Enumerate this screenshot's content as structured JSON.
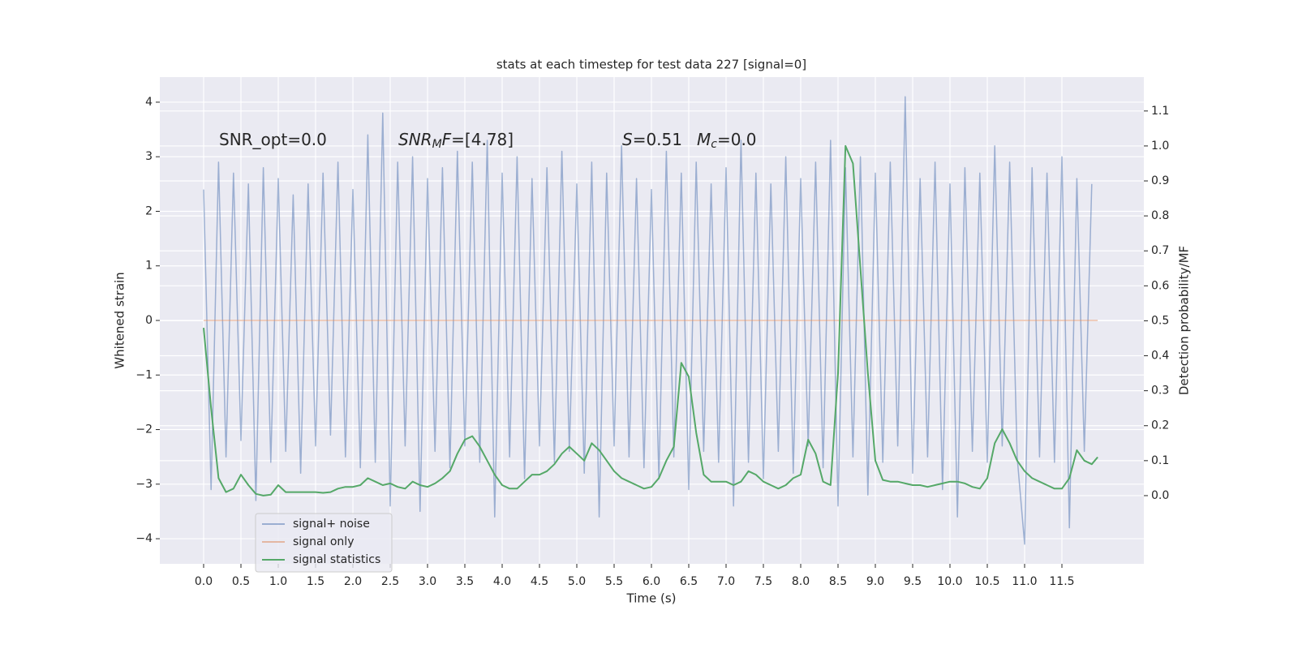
{
  "chart_data": {
    "type": "line",
    "title": "stats at each timestep for test data 227 [signal=0]",
    "xlabel": "Time (s)",
    "ylabel": "Whitened strain",
    "y2label": "Detection probability/MF",
    "annotations": [
      [
        {
          "t": "SNR_opt=0.0",
          "style": "normal"
        }
      ],
      [
        {
          "t": "SNR",
          "style": "italic"
        },
        {
          "t": "M",
          "style": "sub"
        },
        {
          "t": "F",
          "style": "italic"
        },
        {
          "t": "=[4.78]",
          "style": "normal"
        }
      ],
      [
        {
          "t": "S",
          "style": "italic"
        },
        {
          "t": "=0.51",
          "style": "normal"
        }
      ],
      [
        {
          "t": "M",
          "style": "italic"
        },
        {
          "t": "c",
          "style": "sub"
        },
        {
          "t": "=0.0",
          "style": "normal"
        }
      ]
    ],
    "xlim": [
      -0.587,
      12.598
    ],
    "xticks": [
      {
        "value": 0,
        "label": "0.0"
      },
      0.5,
      {
        "value": 1,
        "label": "1.0"
      },
      1.5,
      {
        "value": 2,
        "label": "2.0"
      },
      2.5,
      {
        "value": 3,
        "label": "3.0"
      },
      3.5,
      {
        "value": 4,
        "label": "4.0"
      },
      4.5,
      {
        "value": 5,
        "label": "5.0"
      },
      5.5,
      {
        "value": 6,
        "label": "6.0"
      },
      6.5,
      {
        "value": 7,
        "label": "7.0"
      },
      7.5,
      {
        "value": 8,
        "label": "8.0"
      },
      8.5,
      {
        "value": 9,
        "label": "9.0"
      },
      9.5,
      {
        "value": 10,
        "label": "10.0"
      },
      10.5,
      {
        "value": 11,
        "label": "11.0"
      },
      11.5
    ],
    "ylim": [
      -4.46,
      4.46
    ],
    "yticks": [
      {
        "value": -4,
        "label": "−4"
      },
      {
        "value": -3,
        "label": "−3"
      },
      {
        "value": -2,
        "label": "−2"
      },
      {
        "value": -1,
        "label": "−1"
      },
      0,
      1,
      2,
      3,
      4
    ],
    "y2lim": [
      -0.195,
      1.197
    ],
    "y2ticks": [
      {
        "value": 0,
        "label": "0.0"
      },
      0.1,
      0.2,
      0.3,
      0.4,
      0.5,
      0.6,
      0.7,
      0.8,
      0.9,
      {
        "value": 1,
        "label": "1.0"
      },
      1.1
    ],
    "grid": true,
    "legend": "lower left",
    "series": [
      {
        "name": "signal+ noise",
        "color": "#4c72b0",
        "opacity": 0.5,
        "x": [
          0.0,
          0.1,
          0.2,
          0.3,
          0.4,
          0.5,
          0.6,
          0.7,
          0.8,
          0.9,
          1.0,
          1.1,
          1.2,
          1.3,
          1.4,
          1.5,
          1.6,
          1.7,
          1.8,
          1.9,
          2.0,
          2.1,
          2.2,
          2.3,
          2.4,
          2.5,
          2.6,
          2.7,
          2.8,
          2.9,
          3.0,
          3.1,
          3.2,
          3.3,
          3.4,
          3.5,
          3.6,
          3.7,
          3.8,
          3.9,
          4.0,
          4.1,
          4.2,
          4.3,
          4.4,
          4.5,
          4.6,
          4.7,
          4.8,
          4.9,
          5.0,
          5.1,
          5.2,
          5.3,
          5.4,
          5.5,
          5.6,
          5.7,
          5.8,
          5.9,
          6.0,
          6.1,
          6.2,
          6.3,
          6.4,
          6.5,
          6.6,
          6.7,
          6.8,
          6.9,
          7.0,
          7.1,
          7.2,
          7.3,
          7.4,
          7.5,
          7.6,
          7.7,
          7.8,
          7.9,
          8.0,
          8.1,
          8.2,
          8.3,
          8.4,
          8.5,
          8.6,
          8.7,
          8.8,
          8.9,
          9.0,
          9.1,
          9.2,
          9.3,
          9.4,
          9.5,
          9.6,
          9.7,
          9.8,
          9.9,
          10.0,
          10.1,
          10.2,
          10.3,
          10.4,
          10.5,
          10.6,
          10.7,
          10.8,
          10.9,
          11.0,
          11.1,
          11.2,
          11.3,
          11.4,
          11.5,
          11.6,
          11.7,
          11.8,
          11.9
        ],
        "values": [
          2.4,
          -3.1,
          2.9,
          -2.5,
          2.7,
          -2.2,
          2.5,
          -3.3,
          2.8,
          -2.6,
          2.6,
          -2.4,
          2.3,
          -2.8,
          2.5,
          -2.3,
          2.7,
          -2.1,
          2.9,
          -2.5,
          2.4,
          -2.7,
          3.4,
          -2.6,
          3.8,
          -3.4,
          2.9,
          -2.3,
          3.0,
          -3.5,
          2.6,
          -2.4,
          2.8,
          -2.7,
          3.1,
          -2.3,
          2.9,
          -2.6,
          3.3,
          -3.6,
          2.7,
          -2.5,
          3.0,
          -2.9,
          2.6,
          -2.3,
          2.8,
          -2.6,
          3.1,
          -2.4,
          2.5,
          -2.8,
          2.9,
          -3.6,
          2.7,
          -2.3,
          3.2,
          -2.5,
          2.6,
          -2.7,
          2.4,
          -2.9,
          3.1,
          -2.5,
          2.7,
          -3.1,
          2.9,
          -2.4,
          2.5,
          -2.6,
          2.8,
          -3.4,
          3.3,
          -2.6,
          2.7,
          -2.9,
          2.5,
          -2.4,
          3.0,
          -2.8,
          2.6,
          -2.3,
          2.9,
          -2.7,
          3.3,
          -3.4,
          2.8,
          -2.5,
          3.0,
          -3.2,
          2.7,
          -2.6,
          2.9,
          -2.3,
          4.1,
          -2.8,
          2.6,
          -2.5,
          2.9,
          -3.1,
          2.5,
          -3.6,
          2.8,
          -2.4,
          2.7,
          -2.6,
          3.2,
          -2.3,
          2.9,
          -2.5,
          -4.1,
          2.8,
          -2.5,
          2.7,
          -2.6,
          3.0,
          -3.8,
          2.6,
          -2.4,
          2.5
        ]
      },
      {
        "name": "signal only",
        "color": "#dd8452",
        "opacity": 0.5,
        "x": [
          0.0,
          11.98
        ],
        "values": [
          0,
          0
        ]
      },
      {
        "name": "signal statistics",
        "color": "#55a868",
        "opacity": 1,
        "axis": "y2",
        "x": [
          0.0,
          0.1,
          0.2,
          0.3,
          0.4,
          0.5,
          0.6,
          0.7,
          0.8,
          0.9,
          1.0,
          1.1,
          1.2,
          1.3,
          1.4,
          1.5,
          1.6,
          1.7,
          1.8,
          1.9,
          2.0,
          2.1,
          2.2,
          2.3,
          2.4,
          2.5,
          2.6,
          2.7,
          2.8,
          2.9,
          3.0,
          3.1,
          3.2,
          3.3,
          3.4,
          3.5,
          3.6,
          3.7,
          3.8,
          3.9,
          4.0,
          4.1,
          4.2,
          4.3,
          4.4,
          4.5,
          4.6,
          4.7,
          4.8,
          4.9,
          5.0,
          5.1,
          5.2,
          5.3,
          5.4,
          5.5,
          5.6,
          5.7,
          5.8,
          5.9,
          6.0,
          6.1,
          6.2,
          6.3,
          6.4,
          6.5,
          6.6,
          6.7,
          6.8,
          6.9,
          7.0,
          7.1,
          7.2,
          7.3,
          7.4,
          7.5,
          7.6,
          7.7,
          7.8,
          7.9,
          8.0,
          8.1,
          8.2,
          8.3,
          8.4,
          8.5,
          8.6,
          8.7,
          8.8,
          8.9,
          9.0,
          9.1,
          9.2,
          9.3,
          9.4,
          9.5,
          9.6,
          9.7,
          9.8,
          9.9,
          10.0,
          10.1,
          10.2,
          10.3,
          10.4,
          10.5,
          10.6,
          10.7,
          10.8,
          10.9,
          11.0,
          11.1,
          11.2,
          11.3,
          11.4,
          11.5,
          11.6,
          11.7,
          11.8,
          11.9,
          11.98
        ],
        "values": [
          0.48,
          0.25,
          0.05,
          0.01,
          0.02,
          0.06,
          0.03,
          0.005,
          0.0,
          0.003,
          0.03,
          0.01,
          0.01,
          0.01,
          0.01,
          0.01,
          0.008,
          0.01,
          0.02,
          0.025,
          0.025,
          0.03,
          0.05,
          0.04,
          0.03,
          0.035,
          0.025,
          0.02,
          0.04,
          0.03,
          0.025,
          0.035,
          0.05,
          0.07,
          0.12,
          0.16,
          0.17,
          0.14,
          0.1,
          0.06,
          0.03,
          0.02,
          0.02,
          0.04,
          0.06,
          0.06,
          0.07,
          0.09,
          0.12,
          0.14,
          0.12,
          0.1,
          0.15,
          0.13,
          0.1,
          0.07,
          0.05,
          0.04,
          0.03,
          0.02,
          0.025,
          0.05,
          0.1,
          0.14,
          0.38,
          0.34,
          0.18,
          0.06,
          0.04,
          0.04,
          0.04,
          0.03,
          0.04,
          0.07,
          0.06,
          0.04,
          0.03,
          0.02,
          0.03,
          0.05,
          0.06,
          0.16,
          0.12,
          0.04,
          0.03,
          0.35,
          1.0,
          0.95,
          0.65,
          0.35,
          0.1,
          0.045,
          0.04,
          0.04,
          0.035,
          0.03,
          0.03,
          0.025,
          0.03,
          0.035,
          0.04,
          0.04,
          0.035,
          0.025,
          0.02,
          0.05,
          0.15,
          0.19,
          0.15,
          0.1,
          0.07,
          0.05,
          0.04,
          0.03,
          0.02,
          0.02,
          0.05,
          0.13,
          0.1,
          0.09,
          0.11
        ]
      }
    ]
  }
}
